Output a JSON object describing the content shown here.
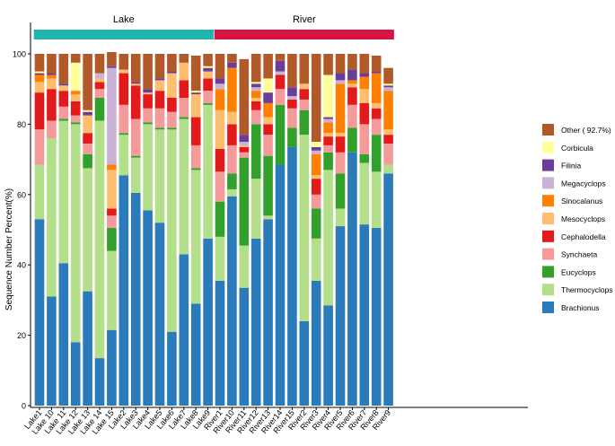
{
  "chart_data": {
    "type": "bar",
    "stacked": true,
    "ylabel": "Sequence Number Percent(%)",
    "xlabel": "",
    "ylim": [
      0,
      100
    ],
    "yticks": [
      0,
      20,
      40,
      60,
      80,
      100
    ],
    "groups": [
      {
        "name": "Lake",
        "color": "#1fb5ad",
        "span": [
          0,
          14
        ]
      },
      {
        "name": "River",
        "color": "#d6163f",
        "span": [
          15,
          29
        ]
      }
    ],
    "categories": [
      "Lake1",
      "Lake 10",
      "Lake 11",
      "Lake 12",
      "Lake 13",
      "Lake 14",
      "Lake 15",
      "Lake2",
      "Lake3",
      "Lake4",
      "Lake5",
      "Lake6",
      "Lake7",
      "Lake8",
      "Lake9",
      "River1",
      "River10",
      "River11",
      "River12",
      "River13",
      "River14",
      "River15",
      "River2",
      "River3",
      "River4",
      "River5",
      "River6",
      "River7",
      "River8",
      "River9"
    ],
    "series": [
      {
        "name": "Brachionus",
        "color": "#2b7bba",
        "values": [
          53,
          31,
          40.5,
          18,
          32.5,
          13.5,
          21.5,
          65.5,
          60.5,
          55.5,
          52,
          21,
          43,
          29,
          47.5,
          35.5,
          59.5,
          33.5,
          47.5,
          53,
          68.5,
          73.5,
          24,
          35.5,
          28.5,
          51,
          72,
          51.5,
          50.5,
          66
        ]
      },
      {
        "name": "Thermocyclops",
        "color": "#b3de8a",
        "values": [
          15.5,
          45,
          40.5,
          62,
          35,
          67.5,
          22.5,
          11.5,
          10,
          24.5,
          26.5,
          57.5,
          38.5,
          38,
          38,
          12.5,
          2,
          12,
          17,
          1,
          0,
          0,
          53,
          12,
          38.5,
          5,
          0,
          17.5,
          16,
          2.5
        ]
      },
      {
        "name": "Eucyclops",
        "color": "#33a02c",
        "values": [
          0,
          0,
          0.5,
          0.5,
          4,
          6.5,
          6.5,
          0.5,
          0.5,
          0.5,
          0.5,
          0.5,
          0.5,
          0.5,
          0.5,
          10,
          4.5,
          25,
          15.5,
          17,
          17,
          5.5,
          7,
          8.5,
          5,
          10,
          7,
          2.5,
          10.5,
          0
        ]
      },
      {
        "name": "Synchaeta",
        "color": "#f59a9b",
        "values": [
          10,
          5,
          3.5,
          2,
          3,
          2.5,
          3.5,
          8,
          10.5,
          4,
          5.5,
          4.5,
          5.5,
          6.5,
          3.5,
          8.5,
          8,
          1.5,
          4,
          6,
          4.5,
          5.5,
          3,
          4,
          2,
          6,
          6.5,
          8.5,
          4.5,
          6
        ]
      },
      {
        "name": "Cephalodella",
        "color": "#e31a1c",
        "values": [
          10.5,
          9,
          4.5,
          4,
          3,
          2,
          2,
          9,
          9.5,
          4,
          5,
          4,
          5,
          8,
          3.5,
          6.5,
          6,
          1.5,
          2.5,
          3,
          4,
          2.5,
          3,
          4.5,
          2.5,
          4.5,
          5,
          6,
          3,
          2.5
        ]
      },
      {
        "name": "Mesocyclops",
        "color": "#fdbf6f",
        "values": [
          3,
          3,
          1.5,
          2,
          5,
          1,
          11,
          1,
          0.5,
          0.5,
          3,
          7,
          5,
          6.5,
          2,
          11,
          3.5,
          0.5,
          1,
          2,
          0,
          0,
          1.5,
          1,
          1,
          1,
          1,
          4,
          1.5,
          1.5
        ]
      },
      {
        "name": "Sinocalanus",
        "color": "#ff7f00",
        "values": [
          2,
          1,
          0,
          1,
          0,
          0,
          1.5,
          0,
          0,
          0,
          0,
          0,
          0,
          0,
          0,
          6,
          12.5,
          0,
          2,
          4,
          0,
          0,
          0,
          6,
          3,
          14,
          1,
          3.5,
          8.5,
          11
        ]
      },
      {
        "name": "Megacyclops",
        "color": "#cab2d6",
        "values": [
          0,
          0,
          0,
          0,
          0,
          1.5,
          27.5,
          0,
          0,
          0,
          0,
          0,
          0,
          0,
          0,
          1.5,
          0,
          1,
          1,
          0,
          1,
          1,
          0,
          1,
          1,
          1,
          0,
          0,
          0,
          1
        ]
      },
      {
        "name": "Filinia",
        "color": "#6a3d9a",
        "values": [
          0.5,
          0.5,
          0.5,
          0,
          1,
          0,
          0.5,
          0,
          0.5,
          1,
          0.5,
          0.5,
          0,
          0.5,
          1,
          1.5,
          1.5,
          2,
          1,
          3,
          3,
          2.5,
          0,
          1,
          0.5,
          2,
          3,
          1,
          0.5,
          0.5
        ]
      },
      {
        "name": "Corbicula",
        "color": "#ffff99",
        "values": [
          0.5,
          0,
          0,
          8,
          0.5,
          0,
          0,
          0,
          0,
          0,
          0,
          0,
          0,
          0.5,
          0.5,
          0,
          0,
          0,
          0.5,
          4,
          0,
          0,
          0,
          1.5,
          12,
          0,
          0,
          0,
          0,
          0.5
        ]
      },
      {
        "name": "Other ( 92.7%)",
        "color": "#b15928",
        "values": [
          5,
          5.5,
          8.5,
          2.5,
          16,
          5.5,
          4,
          4.5,
          8,
          10,
          7,
          5,
          2.5,
          10,
          3.5,
          7,
          2.5,
          21.5,
          8,
          7,
          2,
          9.5,
          8.5,
          25,
          6,
          5.5,
          4.5,
          5.5,
          4.5,
          4.5
        ]
      }
    ]
  }
}
